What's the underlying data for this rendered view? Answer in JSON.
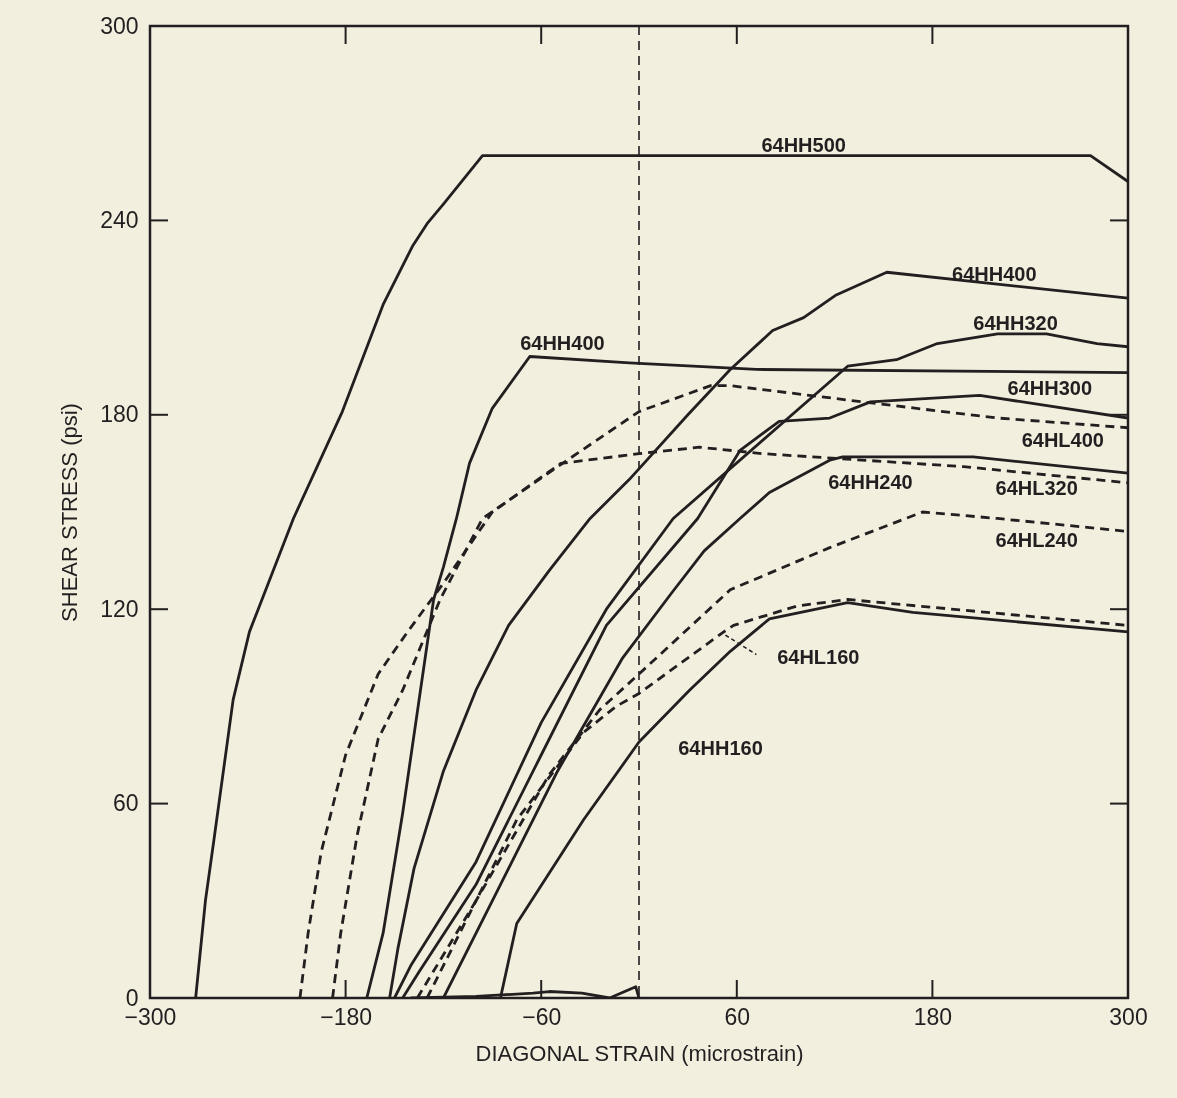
{
  "chart_data": {
    "type": "line",
    "xlabel": "DIAGONAL STRAIN (microstrain)",
    "ylabel": "SHEAR STRESS (psi)",
    "xlim": [
      -300,
      300
    ],
    "ylim": [
      0,
      300
    ],
    "xticks": [
      -300,
      -180,
      -60,
      60,
      180,
      300
    ],
    "yticks": [
      0,
      60,
      120,
      180,
      240,
      300
    ],
    "marker": "none",
    "ref_lines": [
      {
        "axis": "x",
        "value": 0,
        "line_style": "dashed",
        "color": "#231f20"
      }
    ],
    "series": [
      {
        "name": "64HH500",
        "color": "#231f20",
        "line_style": "solid",
        "x": [
          -272,
          -266,
          -261,
          -249,
          -239,
          -212,
          -182,
          -157,
          -139,
          -130,
          -120,
          -96,
          277,
          300
        ],
        "values": [
          0,
          30,
          48,
          92,
          113,
          148,
          181,
          214,
          232,
          239,
          245,
          260,
          260,
          252
        ]
      },
      {
        "name": "64HH400",
        "color": "#231f20",
        "line_style": "solid",
        "x": [
          -167,
          -157,
          -145,
          -126,
          -120,
          -112,
          -104,
          -90,
          -67,
          -6,
          72,
          300
        ],
        "values": [
          0,
          20,
          57,
          123,
          133,
          148,
          165,
          182,
          198,
          196,
          194,
          193
        ]
      },
      {
        "name": "64HH400",
        "color": "#231f20",
        "line_style": "solid",
        "x": [
          -153,
          -148,
          -138,
          -120,
          -100,
          -80,
          -55,
          -30,
          -6,
          30,
          56,
          82,
          101,
          121,
          152,
          300
        ],
        "values": [
          0,
          15,
          40,
          70,
          95,
          115,
          132,
          148,
          160,
          180,
          194,
          206,
          210,
          217,
          224,
          216
        ]
      },
      {
        "name": "64HH320",
        "color": "#231f20",
        "line_style": "solid",
        "x": [
          -150,
          -140,
          -100,
          -60,
          -20,
          21,
          128,
          158,
          183,
          220,
          250,
          281,
          300
        ],
        "values": [
          0,
          10,
          42,
          85,
          120,
          148,
          195,
          197,
          202,
          205,
          205,
          202,
          201
        ]
      },
      {
        "name": "64HH300",
        "color": "#231f20",
        "line_style": "solid",
        "x": [
          -145,
          -135,
          -100,
          -60,
          -20,
          36,
          62,
          86,
          117,
          142,
          209,
          300
        ],
        "values": [
          0,
          8,
          35,
          75,
          115,
          148,
          169,
          178,
          179,
          184,
          186,
          179
        ]
      },
      {
        "name": "64HH240",
        "color": "#231f20",
        "line_style": "solid",
        "x": [
          -120,
          -90,
          -50,
          -10,
          20,
          40,
          62,
          80,
          117,
          125,
          205,
          300
        ],
        "values": [
          0,
          30,
          70,
          105,
          125,
          138,
          148,
          156,
          166,
          167,
          167,
          162
        ]
      },
      {
        "name": "64HH160",
        "color": "#231f20",
        "line_style": "solid",
        "x": [
          -85,
          -75,
          -34,
          0,
          31,
          56,
          80,
          128,
          168,
          300
        ],
        "values": [
          0,
          23,
          55,
          79,
          95,
          107,
          117,
          122,
          119,
          113
        ]
      },
      {
        "name": "64HL400",
        "color": "#231f20",
        "line_style": "dashed",
        "x": [
          -188,
          -183,
          -173,
          -160,
          -145,
          -122,
          -96,
          -44,
          0,
          44,
          56,
          137,
          220,
          300
        ],
        "values": [
          0,
          20,
          50,
          80,
          95,
          123,
          148,
          166,
          181,
          189,
          189,
          184,
          179,
          176
        ]
      },
      {
        "name": "64HL320",
        "color": "#231f20",
        "line_style": "dashed",
        "x": [
          -208,
          -203,
          -195,
          -180,
          -160,
          -142,
          -120,
          -90,
          -48,
          0,
          37,
          76,
          199,
          300
        ],
        "values": [
          0,
          20,
          45,
          75,
          100,
          113,
          128,
          150,
          165,
          168,
          170,
          168,
          164,
          159
        ]
      },
      {
        "name": "64HL240",
        "color": "#231f20",
        "line_style": "dashed",
        "x": [
          -130,
          -100,
          -55,
          -24,
          0,
          56,
          117,
          174,
          220,
          300
        ],
        "values": [
          0,
          30,
          69,
          89,
          100,
          126,
          139,
          150,
          148,
          144
        ]
      },
      {
        "name": "64HL160",
        "color": "#231f20",
        "line_style": "dashed",
        "x": [
          -136,
          -100,
          -75,
          -34,
          -14,
          0,
          52,
          58,
          97,
          128,
          300
        ],
        "values": [
          0,
          30,
          55,
          82,
          90,
          94,
          113,
          115,
          121,
          123,
          115
        ]
      },
      {
        "color": "#231f20",
        "line_style": "solid",
        "x": [
          -140,
          -100,
          -65,
          -55,
          -35,
          -18,
          -2,
          0
        ],
        "values": [
          0,
          0.5,
          1.5,
          2,
          1.5,
          0,
          3.5,
          0
        ]
      }
    ]
  }
}
